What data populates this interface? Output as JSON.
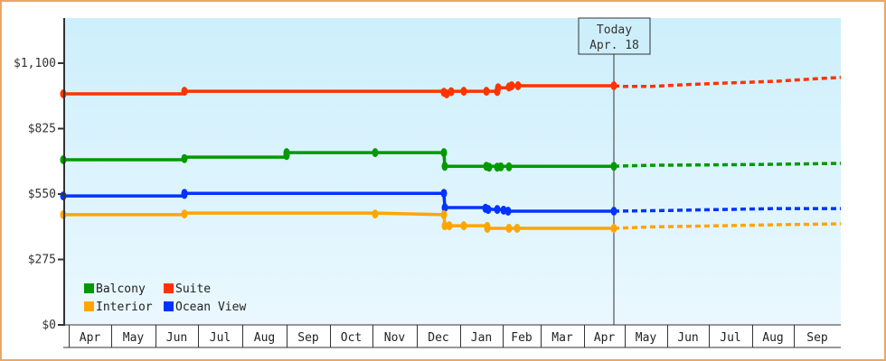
{
  "chart_data": {
    "type": "line",
    "title": "",
    "xlabel": "",
    "ylabel": "",
    "ylim": [
      0,
      1210
    ],
    "y_ticks": [
      {
        "value": 0,
        "label": "$0"
      },
      {
        "value": 275,
        "label": "$275"
      },
      {
        "value": 550,
        "label": "$550"
      },
      {
        "value": 825,
        "label": "$825"
      },
      {
        "value": 1100,
        "label": "$1,100"
      }
    ],
    "x_months": [
      "Apr",
      "May",
      "Jun",
      "Jul",
      "Aug",
      "Sep",
      "Oct",
      "Nov",
      "Dec",
      "Jan",
      "Feb",
      "Mar",
      "Apr",
      "May",
      "Jun",
      "Jul",
      "Aug",
      "Sep"
    ],
    "today_marker": {
      "line1": "Today",
      "line2": "Apr. 18",
      "x": 679
    },
    "legend": [
      {
        "name": "Balcony",
        "color": "#009900"
      },
      {
        "name": "Suite",
        "color": "#ff3300"
      },
      {
        "name": "Interior",
        "color": "#ffa500"
      },
      {
        "name": "Ocean View",
        "color": "#0033ff"
      }
    ],
    "series": [
      {
        "name": "Suite",
        "color": "#ff3300",
        "history": [
          [
            70,
            971
          ],
          [
            204,
            971
          ],
          [
            204,
            982
          ],
          [
            490,
            982
          ],
          [
            492,
            971
          ],
          [
            497,
            975
          ],
          [
            499,
            982
          ],
          [
            513,
            982
          ],
          [
            538,
            982
          ],
          [
            550,
            982
          ],
          [
            550,
            997
          ],
          [
            563,
            997
          ],
          [
            566,
            1005
          ],
          [
            573,
            1005
          ],
          [
            679,
            1005
          ]
        ],
        "markers": [
          [
            70,
            971
          ],
          [
            204,
            982
          ],
          [
            491,
            978
          ],
          [
            494,
            971
          ],
          [
            499,
            980
          ],
          [
            513,
            982
          ],
          [
            538,
            982
          ],
          [
            550,
            981
          ],
          [
            551,
            997
          ],
          [
            563,
            1000
          ],
          [
            566,
            1005
          ],
          [
            573,
            1005
          ],
          [
            679,
            1005
          ]
        ],
        "forecast": [
          [
            679,
            1005
          ],
          [
            690,
            1002
          ],
          [
            720,
            1002
          ],
          [
            760,
            1010
          ],
          [
            800,
            1016
          ],
          [
            860,
            1024
          ],
          [
            900,
            1034
          ],
          [
            930,
            1040
          ]
        ]
      },
      {
        "name": "Balcony",
        "color": "#009900",
        "history": [
          [
            70,
            694
          ],
          [
            204,
            694
          ],
          [
            204,
            705
          ],
          [
            317,
            705
          ],
          [
            317,
            724
          ],
          [
            415,
            724
          ],
          [
            491,
            724
          ],
          [
            492,
            667
          ],
          [
            539,
            667
          ],
          [
            549,
            667
          ],
          [
            679,
            667
          ]
        ],
        "markers": [
          [
            70,
            694
          ],
          [
            204,
            699
          ],
          [
            317,
            712
          ],
          [
            317,
            724
          ],
          [
            415,
            724
          ],
          [
            491,
            724
          ],
          [
            492,
            667
          ],
          [
            538,
            667
          ],
          [
            541,
            663
          ],
          [
            550,
            663
          ],
          [
            554,
            664
          ],
          [
            563,
            664
          ],
          [
            679,
            667
          ]
        ],
        "forecast": [
          [
            679,
            667
          ],
          [
            720,
            671
          ],
          [
            800,
            673
          ],
          [
            860,
            675
          ],
          [
            930,
            679
          ]
        ]
      },
      {
        "name": "Ocean View",
        "color": "#0033ff",
        "history": [
          [
            70,
            542
          ],
          [
            204,
            542
          ],
          [
            204,
            553
          ],
          [
            491,
            553
          ],
          [
            492,
            493
          ],
          [
            537,
            493
          ],
          [
            545,
            485
          ],
          [
            557,
            485
          ],
          [
            562,
            478
          ],
          [
            679,
            478
          ]
        ],
        "markers": [
          [
            70,
            542
          ],
          [
            204,
            553
          ],
          [
            204,
            548
          ],
          [
            491,
            553
          ],
          [
            492,
            493
          ],
          [
            537,
            490
          ],
          [
            540,
            485
          ],
          [
            550,
            485
          ],
          [
            557,
            482
          ],
          [
            562,
            478
          ],
          [
            679,
            478
          ]
        ],
        "forecast": [
          [
            679,
            478
          ],
          [
            740,
            481
          ],
          [
            800,
            485
          ],
          [
            860,
            489
          ],
          [
            930,
            489
          ]
        ]
      },
      {
        "name": "Interior",
        "color": "#ffa500",
        "history": [
          [
            70,
            463
          ],
          [
            204,
            463
          ],
          [
            204,
            470
          ],
          [
            415,
            470
          ],
          [
            491,
            463
          ],
          [
            492,
            417
          ],
          [
            513,
            417
          ],
          [
            539,
            417
          ],
          [
            539,
            406
          ],
          [
            573,
            406
          ],
          [
            679,
            406
          ]
        ],
        "markers": [
          [
            70,
            463
          ],
          [
            204,
            466
          ],
          [
            415,
            466
          ],
          [
            491,
            463
          ],
          [
            492,
            417
          ],
          [
            497,
            417
          ],
          [
            513,
            417
          ],
          [
            539,
            406
          ],
          [
            539,
            414
          ],
          [
            563,
            406
          ],
          [
            572,
            406
          ],
          [
            679,
            406
          ]
        ],
        "forecast": [
          [
            679,
            406
          ],
          [
            720,
            412
          ],
          [
            800,
            417
          ],
          [
            860,
            421
          ],
          [
            930,
            425
          ]
        ]
      }
    ]
  }
}
